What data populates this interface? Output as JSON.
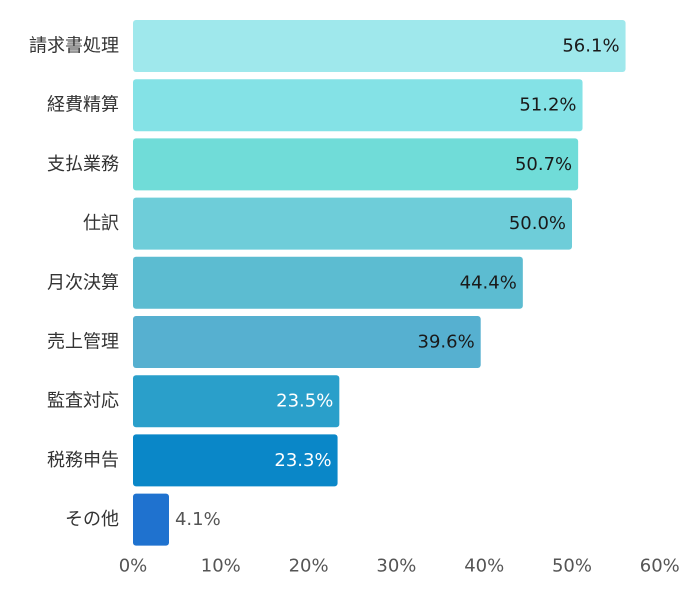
{
  "chart_data": {
    "type": "bar",
    "orientation": "horizontal",
    "categories": [
      "請求書処理",
      "経費精算",
      "支払業務",
      "仕訳",
      "月次決算",
      "売上管理",
      "監査対応",
      "税務申告",
      "その他"
    ],
    "values": [
      56.1,
      51.2,
      50.7,
      50.0,
      44.4,
      39.6,
      23.5,
      23.3,
      4.1
    ],
    "value_labels": [
      "56.1%",
      "51.2%",
      "50.7%",
      "50.0%",
      "44.4%",
      "39.6%",
      "23.5%",
      "23.3%",
      "4.1%"
    ],
    "bar_colors": [
      "#9fe8ec",
      "#84e2e6",
      "#70dcd8",
      "#6ecdd9",
      "#5cbcd1",
      "#56b0d0",
      "#2a9fca",
      "#0a87c8",
      "#1f72cf"
    ],
    "label_colors": [
      "#1a1a1a",
      "#1a1a1a",
      "#1a1a1a",
      "#1a1a1a",
      "#1a1a1a",
      "#1a1a1a",
      "#ffffff",
      "#ffffff",
      "#555555"
    ],
    "xlim": [
      0,
      60
    ],
    "x_ticks": [
      0,
      10,
      20,
      30,
      40,
      50,
      60
    ],
    "x_tick_labels": [
      "0%",
      "10%",
      "20%",
      "30%",
      "40%",
      "50%",
      "60%"
    ],
    "grid": false,
    "legend": "none",
    "title": "",
    "xlabel": "",
    "ylabel": ""
  }
}
